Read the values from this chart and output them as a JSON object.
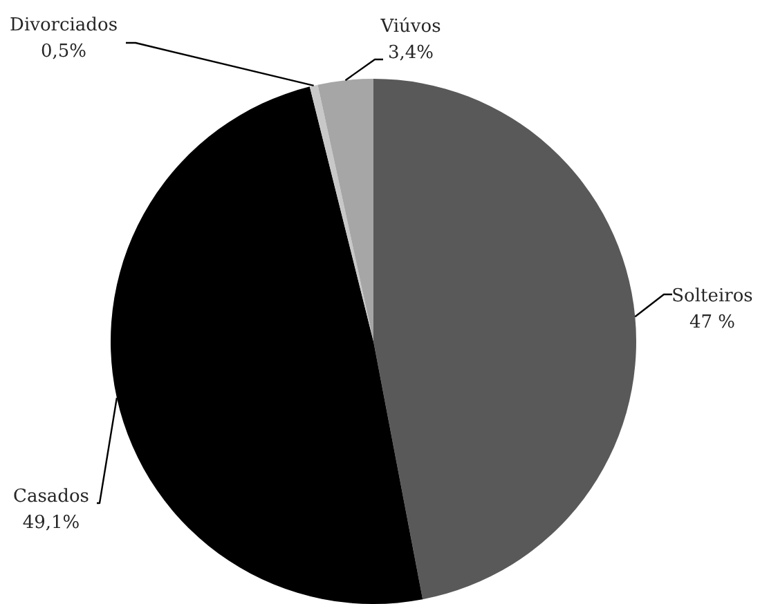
{
  "chart_data": {
    "type": "pie",
    "categories": [
      "Solteiros",
      "Casados",
      "Divorciados",
      "Viúvos"
    ],
    "values": [
      47,
      49.1,
      0.5,
      3.4
    ],
    "colors": [
      "#595959",
      "#000000",
      "#c8c8c8",
      "#a6a6a6"
    ],
    "value_labels": [
      "47 %",
      "49,1%",
      "0,5%",
      "3,4%"
    ],
    "legend": false
  }
}
